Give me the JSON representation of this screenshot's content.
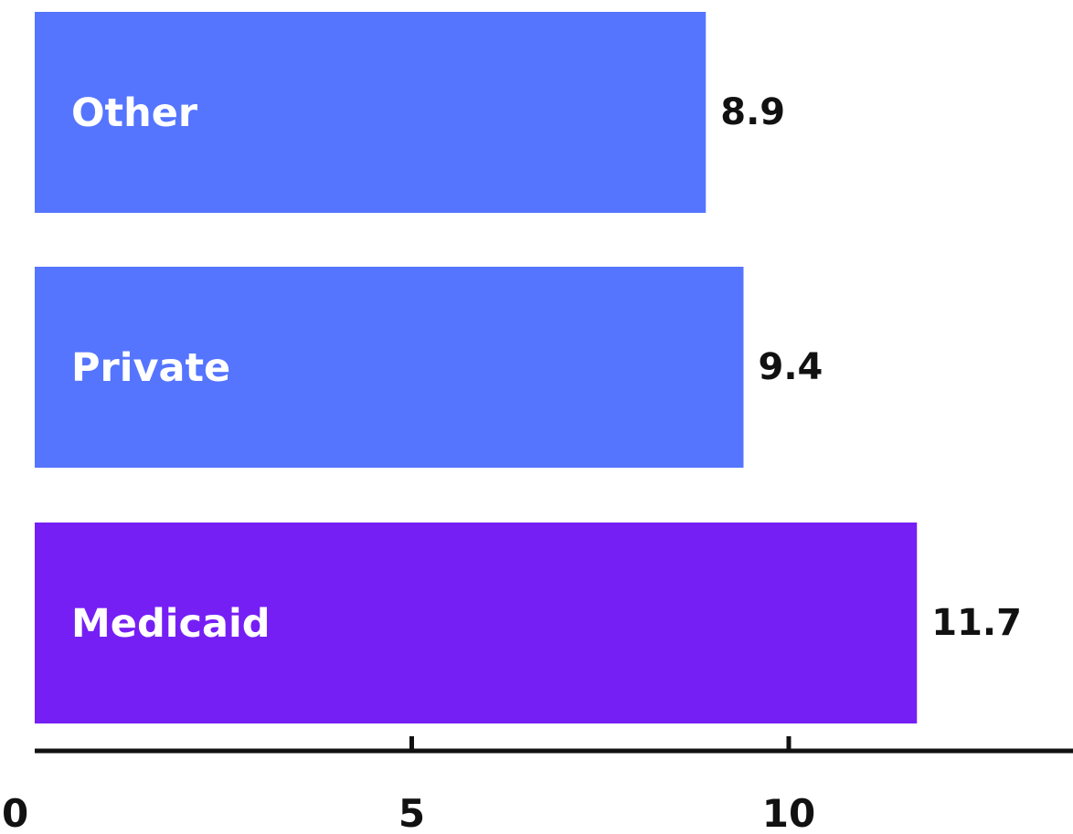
{
  "chart_data": {
    "type": "bar",
    "orientation": "horizontal",
    "categories": [
      "Other",
      "Private",
      "Medicaid"
    ],
    "values": [
      8.9,
      9.4,
      11.7
    ],
    "value_labels": [
      "8.9",
      "9.4",
      "11.7"
    ],
    "bar_colors": [
      "#5575ff",
      "#5575ff",
      "#761ff5"
    ],
    "title": "",
    "xlabel": "",
    "ylabel": "",
    "xlim": [
      0,
      14
    ],
    "xticks": [
      0,
      5,
      10
    ],
    "xtick_labels": [
      "0",
      "5",
      "10"
    ],
    "grid": false,
    "legend": false,
    "axis_color": "#111111"
  }
}
